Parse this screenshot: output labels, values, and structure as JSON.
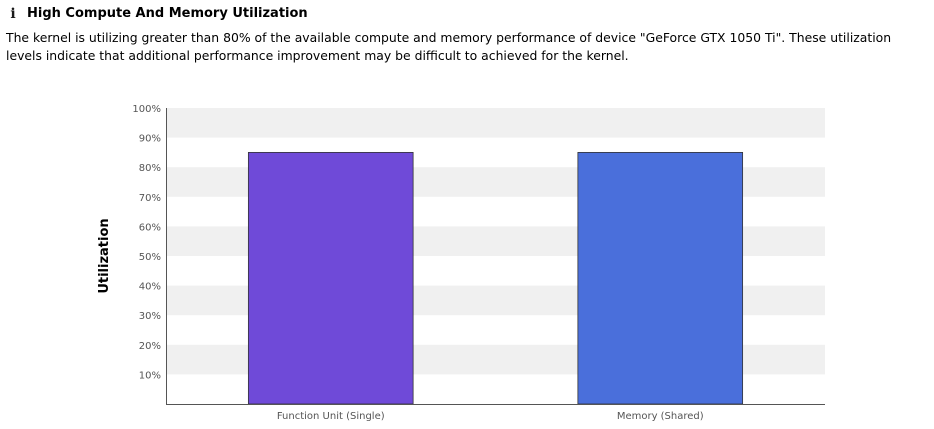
{
  "header": {
    "icon": "info-icon",
    "icon_glyph": "i",
    "title": "High Compute And Memory Utilization"
  },
  "description": "The kernel is utilizing greater than 80% of the available compute and memory performance of device \"GeForce GTX 1050 Ti\". These utilization levels indicate that additional performance improvement may be difficult to achieved for the kernel.",
  "chart_data": {
    "type": "bar",
    "categories": [
      "Function Unit (Single)",
      "Memory (Shared)"
    ],
    "values": [
      85,
      85
    ],
    "colors": [
      "#6f4ad8",
      "#4a6fdb"
    ],
    "ylabel": "Utilization",
    "xlabel": "",
    "ylim": [
      0,
      100
    ],
    "yticks": [
      "10%",
      "20%",
      "30%",
      "40%",
      "50%",
      "60%",
      "70%",
      "80%",
      "90%",
      "100%"
    ],
    "grid_band_color": "#f0f0f0"
  }
}
